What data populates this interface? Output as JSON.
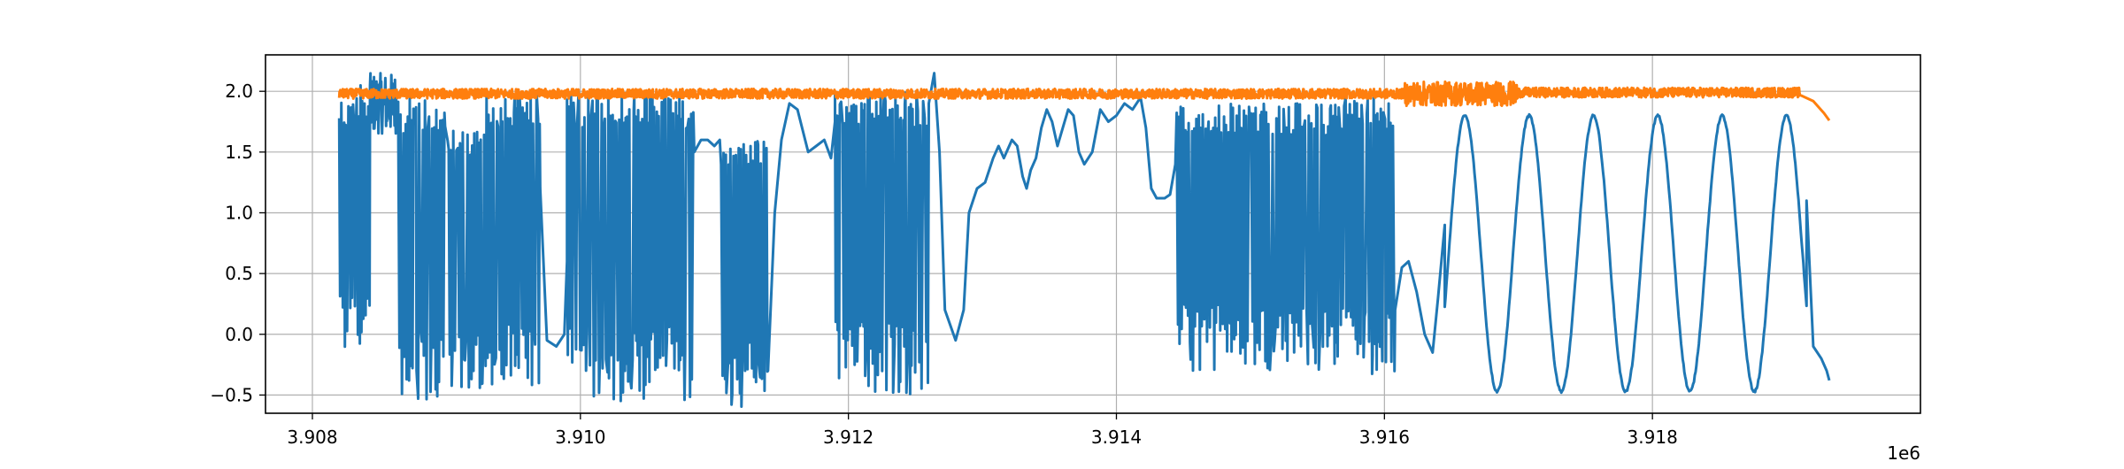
{
  "chart_data": {
    "type": "line",
    "title": "",
    "xlabel": "",
    "ylabel": "",
    "xlim": [
      3907650,
      3920000
    ],
    "ylim": [
      -0.65,
      2.3
    ],
    "x_ticks": [
      3908000,
      3910000,
      3912000,
      3914000,
      3916000,
      3918000
    ],
    "x_tick_labels": [
      "3.908",
      "3.910",
      "3.912",
      "3.914",
      "3.916",
      "3.918"
    ],
    "x_offset_label": "1e6",
    "y_ticks": [
      -0.5,
      0.0,
      0.5,
      1.0,
      1.5,
      2.0
    ],
    "y_tick_labels": [
      "−0.5",
      "0.0",
      "0.5",
      "1.0",
      "1.5",
      "2.0"
    ],
    "grid": true,
    "legend": "none",
    "series": [
      {
        "color": "#1f77b4",
        "x_start": 3908200,
        "x_end": 3919320,
        "segments": [
          {
            "type": "switching",
            "x": [
              3908200,
              3908330
            ],
            "low": -0.23,
            "high": 1.95
          },
          {
            "type": "switching",
            "x": [
              3908330,
              3908430
            ],
            "low": -0.22,
            "high": 2.05
          },
          {
            "type": "band",
            "x": [
              3908430,
              3908640
            ],
            "low": 1.65,
            "high": 2.15
          },
          {
            "type": "switching",
            "x": [
              3908640,
              3909000
            ],
            "low": -0.55,
            "high": 1.95
          },
          {
            "type": "switching",
            "x": [
              3909000,
              3909300
            ],
            "low": -0.45,
            "high": 1.7
          },
          {
            "type": "switching",
            "x": [
              3909300,
              3909700
            ],
            "low": -0.5,
            "high": 2.0
          },
          {
            "type": "smooth",
            "x": [
              3909700,
              3909900
            ],
            "points": [
              [
                3909700,
                1.2
              ],
              [
                3909750,
                -0.05
              ],
              [
                3909820,
                -0.1
              ],
              [
                3909880,
                0.0
              ],
              [
                3909900,
                0.6
              ]
            ]
          },
          {
            "type": "switching",
            "x": [
              3909900,
              3910850
            ],
            "low": -0.55,
            "high": 2.0
          },
          {
            "type": "smooth",
            "x": [
              3910850,
              3911050
            ],
            "points": [
              [
                3910850,
                1.5
              ],
              [
                3910900,
                1.6
              ],
              [
                3910950,
                1.6
              ],
              [
                3911000,
                1.55
              ],
              [
                3911040,
                1.6
              ]
            ]
          },
          {
            "type": "switching",
            "x": [
              3911050,
              3911400
            ],
            "low": -0.6,
            "high": 1.65
          },
          {
            "type": "smooth",
            "x": [
              3911400,
              3911900
            ],
            "points": [
              [
                3911400,
                -0.3
              ],
              [
                3911450,
                1.0
              ],
              [
                3911500,
                1.6
              ],
              [
                3911560,
                1.9
              ],
              [
                3911620,
                1.85
              ],
              [
                3911700,
                1.5
              ],
              [
                3911760,
                1.55
              ],
              [
                3911820,
                1.6
              ],
              [
                3911870,
                1.45
              ],
              [
                3911900,
                1.75
              ]
            ]
          },
          {
            "type": "switching",
            "x": [
              3911900,
              3912600
            ],
            "low": -0.5,
            "high": 2.0
          },
          {
            "type": "smooth",
            "x": [
              3912600,
              3914450
            ],
            "points": [
              [
                3912600,
                1.9
              ],
              [
                3912640,
                2.15
              ],
              [
                3912680,
                1.5
              ],
              [
                3912720,
                0.2
              ],
              [
                3912800,
                -0.05
              ],
              [
                3912860,
                0.2
              ],
              [
                3912900,
                1.0
              ],
              [
                3912960,
                1.2
              ],
              [
                3913020,
                1.25
              ],
              [
                3913080,
                1.45
              ],
              [
                3913120,
                1.55
              ],
              [
                3913160,
                1.45
              ],
              [
                3913220,
                1.6
              ],
              [
                3913260,
                1.55
              ],
              [
                3913300,
                1.3
              ],
              [
                3913330,
                1.2
              ],
              [
                3913360,
                1.35
              ],
              [
                3913400,
                1.45
              ],
              [
                3913440,
                1.7
              ],
              [
                3913480,
                1.85
              ],
              [
                3913520,
                1.75
              ],
              [
                3913560,
                1.55
              ],
              [
                3913600,
                1.7
              ],
              [
                3913640,
                1.85
              ],
              [
                3913680,
                1.8
              ],
              [
                3913720,
                1.5
              ],
              [
                3913760,
                1.4
              ],
              [
                3913820,
                1.5
              ],
              [
                3913880,
                1.85
              ],
              [
                3913940,
                1.75
              ],
              [
                3914000,
                1.8
              ],
              [
                3914060,
                1.9
              ],
              [
                3914120,
                1.85
              ],
              [
                3914180,
                1.95
              ],
              [
                3914220,
                1.7
              ],
              [
                3914260,
                1.2
              ],
              [
                3914300,
                1.12
              ],
              [
                3914360,
                1.12
              ],
              [
                3914400,
                1.15
              ],
              [
                3914440,
                1.4
              ]
            ]
          },
          {
            "type": "switching",
            "x": [
              3914450,
              3915600
            ],
            "low": -0.3,
            "high": 1.9
          },
          {
            "type": "switching",
            "x": [
              3915600,
              3916080
            ],
            "low": -0.35,
            "high": 1.95
          },
          {
            "type": "smooth",
            "x": [
              3916080,
              3916450
            ],
            "points": [
              [
                3916080,
                0.2
              ],
              [
                3916130,
                0.55
              ],
              [
                3916180,
                0.6
              ],
              [
                3916240,
                0.35
              ],
              [
                3916300,
                0.0
              ],
              [
                3916360,
                -0.15
              ],
              [
                3916400,
                0.3
              ],
              [
                3916450,
                0.9
              ]
            ]
          },
          {
            "type": "oscillation",
            "x": [
              3916450,
              3919320
            ],
            "period": 480,
            "min": -0.47,
            "max": 1.8,
            "first_peak": 3916600
          },
          {
            "type": "smooth",
            "x": [
              3919150,
              3919320
            ],
            "points": [
              [
                3919150,
                1.1
              ],
              [
                3919200,
                -0.1
              ],
              [
                3919260,
                -0.2
              ],
              [
                3919300,
                -0.3
              ],
              [
                3919320,
                -0.38
              ]
            ]
          }
        ]
      },
      {
        "color": "#ff7f0e",
        "x_start": 3908200,
        "x_end": 3919320,
        "segments": [
          {
            "type": "noise",
            "x": [
              3908200,
              3916150
            ],
            "center": 1.98,
            "amplitude": 0.04
          },
          {
            "type": "noise",
            "x": [
              3916150,
              3917000
            ],
            "center": 1.98,
            "amplitude": 0.1
          },
          {
            "type": "noise",
            "x": [
              3917000,
              3919100
            ],
            "center": 1.99,
            "amplitude": 0.04
          },
          {
            "type": "smooth",
            "x": [
              3919100,
              3919320
            ],
            "points": [
              [
                3919100,
                1.97
              ],
              [
                3919200,
                1.92
              ],
              [
                3919280,
                1.82
              ],
              [
                3919320,
                1.76
              ]
            ]
          }
        ]
      }
    ]
  }
}
